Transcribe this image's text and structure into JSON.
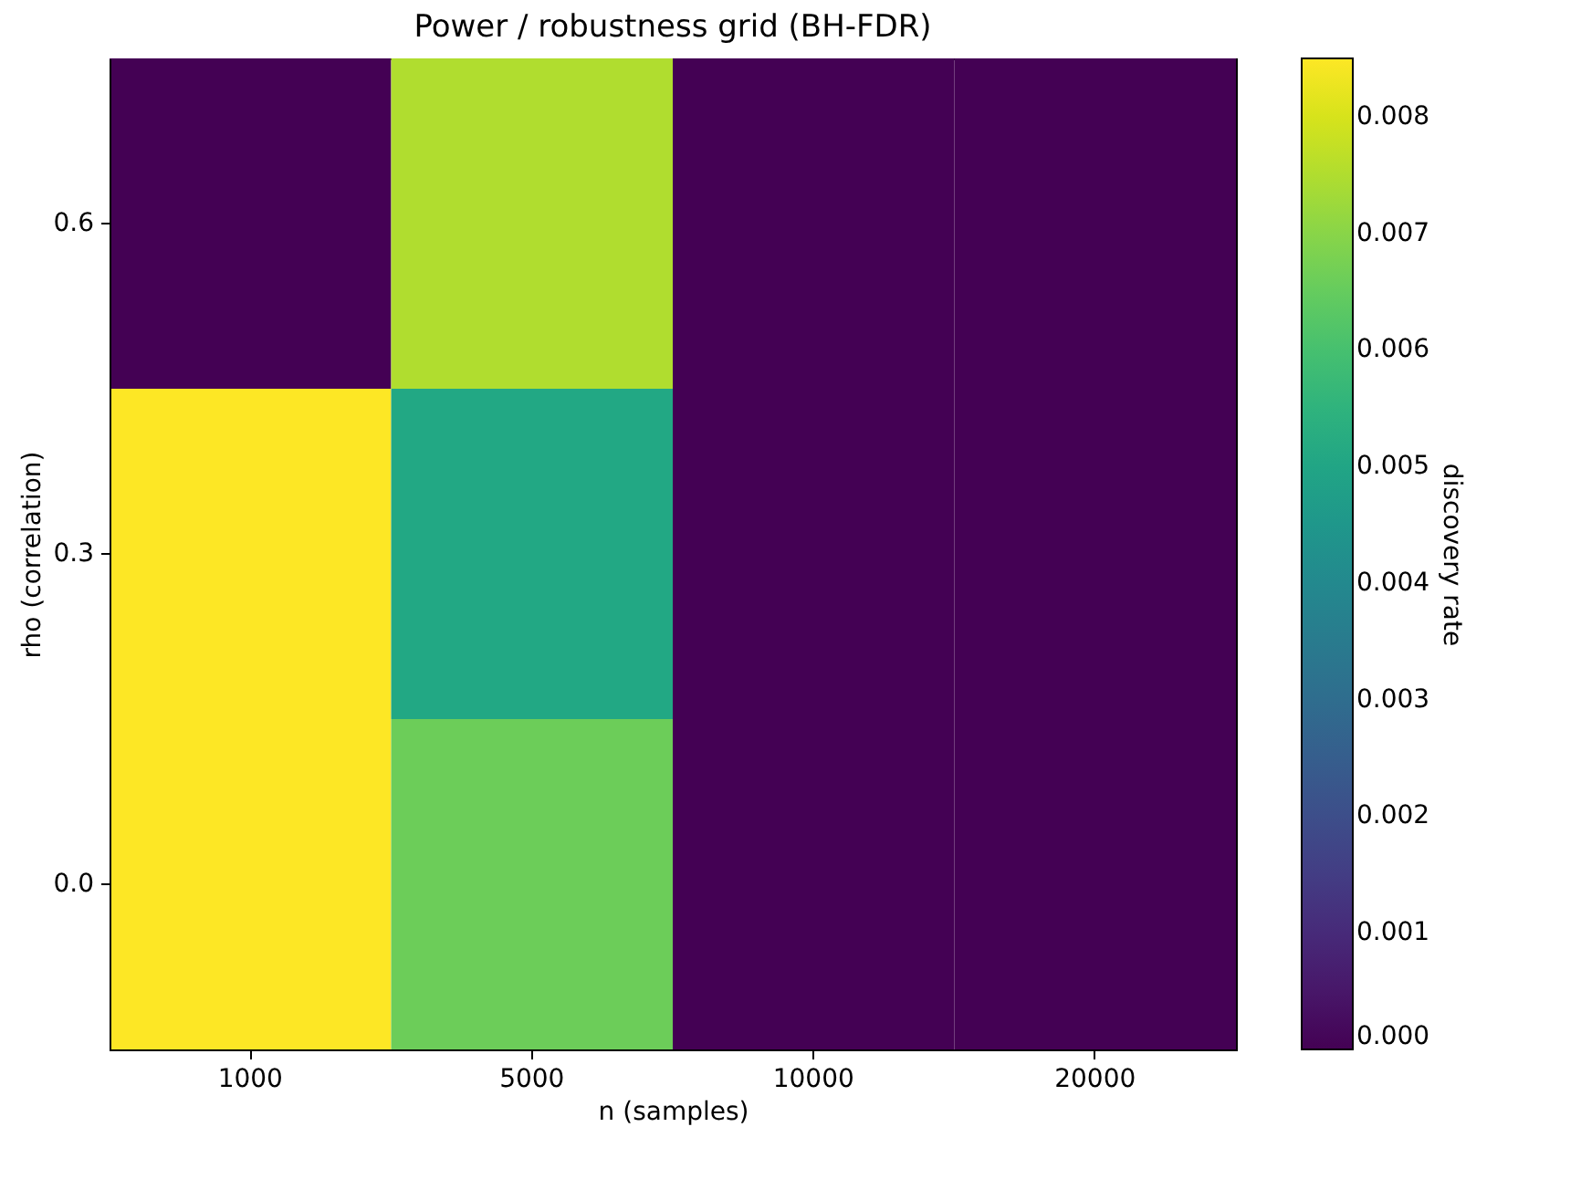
{
  "chart_data": {
    "type": "heatmap",
    "title": "Power / robustness grid (BH-FDR)",
    "xlabel": "n (samples)",
    "ylabel": "rho (correlation)",
    "clabel": "discovery rate",
    "categories": [
      "1000",
      "5000",
      "10000",
      "20000"
    ],
    "y_categories": [
      "0.6",
      "0.3",
      "0.0"
    ],
    "cells": [
      [
        0,
        0.0075,
        0,
        0
      ],
      [
        0.0085,
        0.0051,
        0,
        0
      ],
      [
        0.0085,
        0.0066,
        0,
        0
      ]
    ],
    "clim": [
      0,
      0.0085
    ],
    "cticks": [
      {
        "value": 0,
        "label": "0.000"
      },
      {
        "value": 0.001,
        "label": "0.001"
      },
      {
        "value": 0.002,
        "label": "0.002"
      },
      {
        "value": 0.003,
        "label": "0.003"
      },
      {
        "value": 0.004,
        "label": "0.004"
      },
      {
        "value": 0.005,
        "label": "0.005"
      },
      {
        "value": 0.006,
        "label": "0.006"
      },
      {
        "value": 0.007,
        "label": "0.007"
      },
      {
        "value": 0.008,
        "label": "0.008"
      }
    ]
  }
}
